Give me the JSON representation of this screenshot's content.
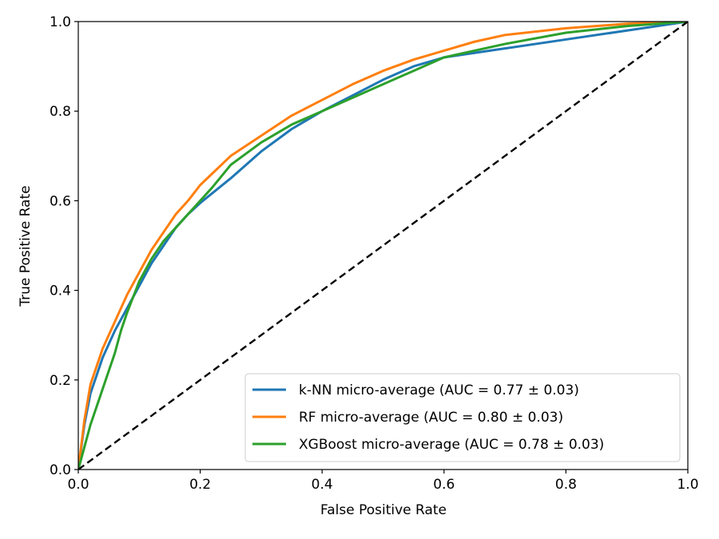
{
  "chart_data": {
    "type": "line",
    "title": "",
    "xlabel": "False Positive Rate",
    "ylabel": "True Positive Rate",
    "xlim": [
      0.0,
      1.0
    ],
    "ylim": [
      0.0,
      1.0
    ],
    "xticks": [
      "0.0",
      "0.2",
      "0.4",
      "0.6",
      "0.8",
      "1.0"
    ],
    "yticks": [
      "0.0",
      "0.2",
      "0.4",
      "0.6",
      "0.8",
      "1.0"
    ],
    "grid": false,
    "legend_position": "lower-right",
    "series": [
      {
        "name": "k-NN micro-average (AUC = 0.77 ± 0.03)",
        "color": "#1f77b4",
        "x": [
          0,
          0.01,
          0.02,
          0.04,
          0.06,
          0.08,
          0.1,
          0.12,
          0.14,
          0.16,
          0.18,
          0.2,
          0.25,
          0.3,
          0.35,
          0.4,
          0.45,
          0.5,
          0.55,
          0.6,
          0.65,
          0.7,
          0.8,
          0.9,
          1.0
        ],
        "y": [
          0,
          0.1,
          0.17,
          0.25,
          0.31,
          0.36,
          0.41,
          0.46,
          0.5,
          0.54,
          0.57,
          0.595,
          0.65,
          0.71,
          0.76,
          0.8,
          0.835,
          0.87,
          0.9,
          0.92,
          0.93,
          0.94,
          0.96,
          0.98,
          1.0
        ]
      },
      {
        "name": "RF micro-average (AUC = 0.80 ± 0.03)",
        "color": "#ff7f0e",
        "x": [
          0,
          0.01,
          0.02,
          0.04,
          0.06,
          0.08,
          0.1,
          0.12,
          0.14,
          0.16,
          0.18,
          0.2,
          0.25,
          0.3,
          0.35,
          0.4,
          0.45,
          0.5,
          0.55,
          0.6,
          0.65,
          0.7,
          0.8,
          0.9,
          1.0
        ],
        "y": [
          0,
          0.11,
          0.19,
          0.27,
          0.33,
          0.39,
          0.44,
          0.49,
          0.53,
          0.57,
          0.6,
          0.635,
          0.7,
          0.745,
          0.79,
          0.825,
          0.86,
          0.89,
          0.915,
          0.935,
          0.955,
          0.97,
          0.985,
          0.995,
          1.0
        ]
      },
      {
        "name": "XGBoost micro-average (AUC = 0.78 ± 0.03)",
        "color": "#2ca02c",
        "x": [
          0,
          0.01,
          0.02,
          0.04,
          0.06,
          0.07,
          0.08,
          0.1,
          0.12,
          0.14,
          0.16,
          0.18,
          0.2,
          0.22,
          0.25,
          0.28,
          0.3,
          0.35,
          0.4,
          0.45,
          0.5,
          0.55,
          0.6,
          0.65,
          0.7,
          0.8,
          0.9,
          1.0
        ],
        "y": [
          0,
          0.05,
          0.1,
          0.18,
          0.26,
          0.31,
          0.35,
          0.42,
          0.47,
          0.51,
          0.54,
          0.57,
          0.6,
          0.63,
          0.68,
          0.71,
          0.73,
          0.77,
          0.8,
          0.83,
          0.86,
          0.89,
          0.92,
          0.935,
          0.95,
          0.975,
          0.99,
          1.0
        ]
      }
    ],
    "reference_line": {
      "x": [
        0,
        1
      ],
      "y": [
        0,
        1
      ],
      "color": "#000000",
      "style": "dashed"
    }
  }
}
